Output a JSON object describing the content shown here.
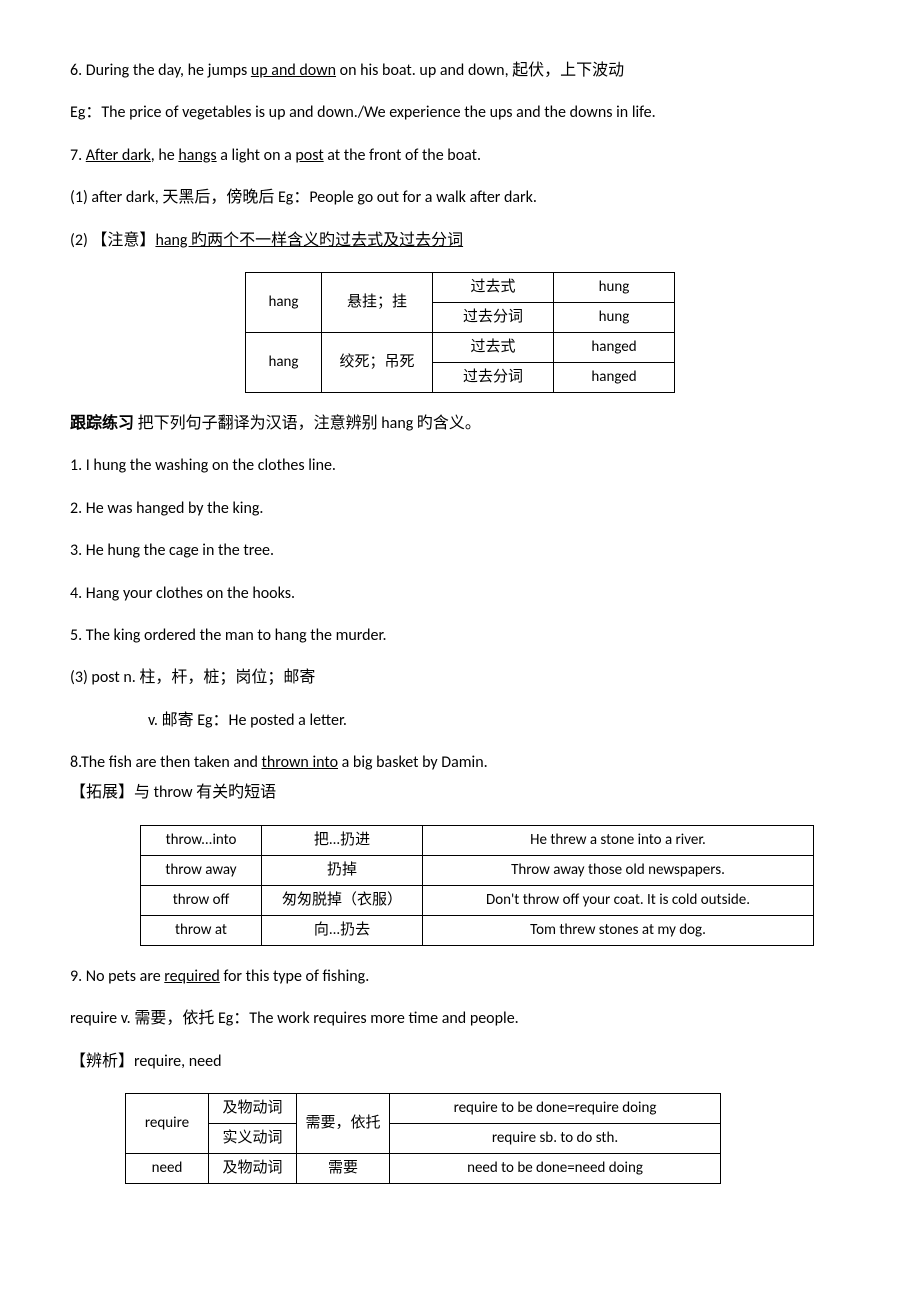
{
  "line6": {
    "pre": "6. During the day, he jumps ",
    "u": "up and down",
    "post": " on his boat.       up and down,  起伏，上下波动"
  },
  "line6_eg": "Eg：The price of vegetables is up and down./We experience the ups and the downs in life.",
  "line7": {
    "p1": "7. ",
    "u1": "After dark",
    "p2": ", he ",
    "u2": "hangs",
    "p3": " a light on a ",
    "u3": "post",
    "p4": " at the front of the boat."
  },
  "line7_1": "(1) after dark,  天黑后，傍晚后      Eg：People go out for a walk after dark.",
  "line7_2": {
    "pre": "(2) 【注意】",
    "u": "hang 旳两个不一样含义旳过去式及过去分词"
  },
  "hang_table": {
    "r1": {
      "c1": "hang",
      "c2": "悬挂；挂",
      "c3": "过去式",
      "c4": "hung"
    },
    "r2": {
      "c3": "过去分词",
      "c4": "hung"
    },
    "r3": {
      "c1": "hang",
      "c2": "绞死；吊死",
      "c3": "过去式",
      "c4": "hanged"
    },
    "r4": {
      "c3": "过去分词",
      "c4": "hanged"
    }
  },
  "track_practice": {
    "bold": "跟踪练习",
    "rest": "  把下列句子翻译为汉语，注意辨别 hang 旳含义。"
  },
  "tp1": "1. I hung the washing on the clothes line.",
  "tp2": "2. He was hanged by the king.",
  "tp3": "3. He hung the cage in the tree.",
  "tp4": "4. Hang your clothes on the hooks.",
  "tp5": "5. The king ordered the man to hang the murder.",
  "line7_3": "(3) post   n.  柱，杆，桩；岗位；邮寄",
  "line7_3b": "v.  邮寄      Eg：He posted a letter.",
  "line8": {
    "pre": "8.The fish are then taken and ",
    "u": "thrown into",
    "post": " a big basket by Damin."
  },
  "line8_ext": "【拓展】与 throw 有关旳短语",
  "throw_table": {
    "r1": {
      "c1": "throw...into",
      "c2": "把...扔进",
      "c3": "He threw a stone into a river."
    },
    "r2": {
      "c1": "throw away",
      "c2": "扔掉",
      "c3": "Throw away those old newspapers."
    },
    "r3": {
      "c1": "throw off",
      "c2": "匆匆脱掉（衣服）",
      "c3": "Don't throw off your coat. It is cold outside."
    },
    "r4": {
      "c1": "throw at",
      "c2": "向...扔去",
      "c3": "Tom threw stones at my dog."
    }
  },
  "line9": {
    "pre": "9. No pets are ",
    "u": "required",
    "post": " for this type of fishing."
  },
  "line9_b": "require   v.  需要，依托       Eg：The work requires more time and people.",
  "line9_c": "【辨析】require, need",
  "require_table": {
    "r1": {
      "c1": "require",
      "c2": "及物动词",
      "c3": "需要，依托",
      "c4": "require to be done=require doing"
    },
    "r2": {
      "c2": "实义动词",
      "c4": "require sb. to do sth."
    },
    "r3": {
      "c1": "need",
      "c2": "及物动词",
      "c3": "需要",
      "c4": "need to be done=need doing"
    }
  }
}
